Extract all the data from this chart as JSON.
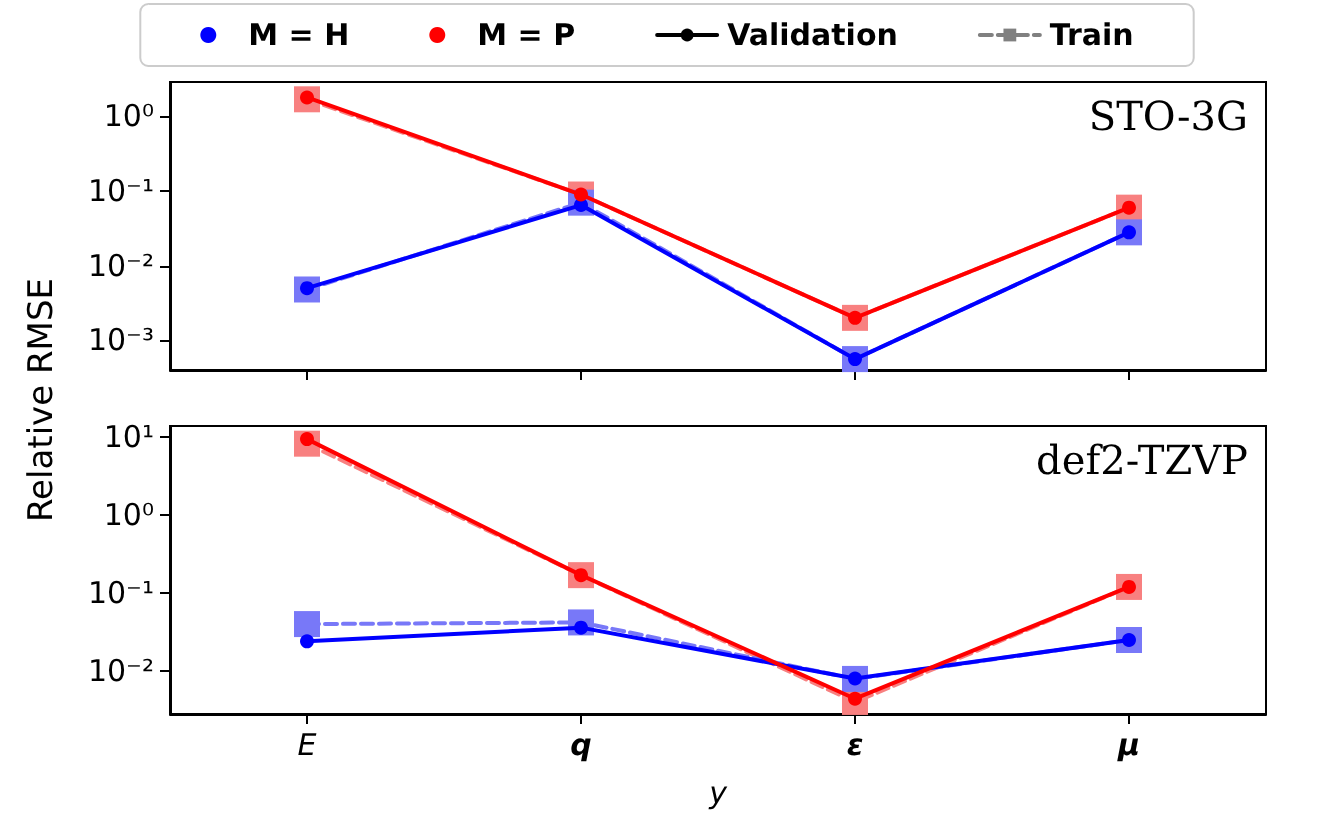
{
  "chart_data": [
    {
      "type": "line",
      "title": "STO-3G",
      "ylabel": "Relative RMSE",
      "categories": [
        null,
        null,
        null,
        null
      ],
      "log": true,
      "ylim": [
        0.0004,
        2.9
      ],
      "yticks": [
        {
          "value": 0.001,
          "label": "10⁻³"
        },
        {
          "value": 0.01,
          "label": "10⁻²"
        },
        {
          "value": 0.1,
          "label": "10⁻¹"
        },
        {
          "value": 1,
          "label": "10⁰"
        }
      ],
      "tick_labels": "y",
      "legend": "top",
      "grid": false,
      "series": [
        {
          "color": "#f88080",
          "marker": "square",
          "line_style": "dashed",
          "values": [
            1.7,
            0.09,
            0.002,
            0.06
          ]
        },
        {
          "color": "#7878f8",
          "marker": "square",
          "line_style": "dashed",
          "values": [
            0.0048,
            0.07,
            0.00056,
            0.028
          ]
        },
        {
          "name": "M = H",
          "color": "#0000ff",
          "marker": "circle",
          "line_style": "solid",
          "values": [
            0.005,
            0.065,
            0.00056,
            0.028
          ]
        },
        {
          "name": "M = P",
          "color": "#ff0000",
          "marker": "circle",
          "line_style": "solid",
          "values": [
            1.8,
            0.09,
            0.002,
            0.06
          ]
        },
        {
          "name": "Validation",
          "color": "#000000",
          "marker": "circle",
          "line_style": "solid",
          "values": [
            null,
            null,
            null,
            null
          ]
        },
        {
          "name": "Train",
          "color": "#808080",
          "marker": "square",
          "line_style": "dashed",
          "values": [
            null,
            null,
            null,
            null
          ]
        }
      ]
    },
    {
      "type": "line",
      "title": "def2-TZVP",
      "xlabel": "y",
      "categories": [
        "E",
        "q",
        "ε",
        "μ"
      ],
      "log": true,
      "ylim": [
        0.0028,
        14
      ],
      "yticks": [
        {
          "value": 0.01,
          "label": "10⁻²"
        },
        {
          "value": 0.1,
          "label": "10⁻¹"
        },
        {
          "value": 1,
          "label": "10⁰"
        },
        {
          "value": 10,
          "label": "10¹"
        }
      ],
      "legend": false,
      "grid": false,
      "series": [
        {
          "color": "#f88080",
          "marker": "square",
          "line_style": "dashed",
          "values": [
            8.3,
            0.17,
            0.004,
            0.12
          ]
        },
        {
          "color": "#7878f8",
          "marker": "square",
          "line_style": "dashed",
          "values": [
            0.04,
            0.042,
            0.0079,
            0.025
          ]
        },
        {
          "color": "#0000ff",
          "marker": "circle",
          "line_style": "solid",
          "values": [
            0.024,
            0.036,
            0.008,
            0.025
          ]
        },
        {
          "color": "#ff0000",
          "marker": "circle",
          "line_style": "solid",
          "values": [
            9.5,
            0.17,
            0.0044,
            0.12
          ]
        }
      ]
    }
  ]
}
